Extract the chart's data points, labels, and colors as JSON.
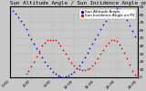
{
  "title": "Sun Altitude Angle / Sun Incidence Angle on PV Panels",
  "legend_blue": "Sun Altitude Angle",
  "legend_red": "Sun Incidence Angle on PV",
  "blue_x": [
    0.0,
    0.5,
    1.0,
    1.5,
    2.0,
    2.5,
    3.0,
    3.5,
    4.0,
    4.5,
    5.0,
    5.5,
    6.0,
    6.5,
    7.0,
    7.5,
    8.0,
    8.5,
    9.0,
    9.5,
    10.0,
    10.5,
    11.0,
    11.5,
    12.0,
    12.5,
    13.0,
    13.5,
    14.0,
    14.5,
    15.0,
    15.5,
    16.0,
    16.5,
    17.0,
    17.5,
    18.0,
    18.5,
    19.0,
    19.5,
    20.0,
    20.5,
    21.0,
    21.5,
    22.0,
    22.5,
    23.0,
    23.5,
    24.0
  ],
  "blue_y": [
    88,
    85,
    81,
    77,
    72,
    67,
    61,
    55,
    49,
    43,
    37,
    31,
    25,
    20,
    15,
    11,
    7,
    4,
    2,
    1,
    0,
    1,
    2,
    4,
    7,
    11,
    15,
    20,
    25,
    31,
    37,
    43,
    49,
    55,
    61,
    67,
    72,
    77,
    81,
    85,
    88,
    87,
    84,
    79,
    73,
    66,
    59,
    52,
    44
  ],
  "red_x": [
    3.0,
    3.5,
    4.0,
    4.5,
    5.0,
    5.5,
    6.0,
    6.5,
    7.0,
    7.5,
    8.0,
    8.5,
    9.0,
    9.5,
    10.0,
    10.5,
    11.0,
    11.5,
    12.0,
    12.5,
    13.0,
    13.5,
    14.0,
    14.5,
    15.0,
    15.5,
    16.0,
    16.5,
    17.0,
    17.5,
    18.0,
    18.5,
    19.0,
    19.5,
    20.0,
    20.5,
    21.0,
    21.5,
    22.0,
    22.5,
    23.0,
    23.5,
    24.0
  ],
  "red_y": [
    5,
    8,
    14,
    20,
    27,
    34,
    40,
    44,
    47,
    48,
    48,
    47,
    44,
    40,
    35,
    30,
    24,
    19,
    15,
    12,
    10,
    9,
    9,
    10,
    12,
    15,
    19,
    24,
    30,
    35,
    40,
    44,
    47,
    48,
    46,
    42,
    37,
    31,
    24,
    16,
    8,
    3,
    1
  ],
  "background_color": "#c8c8c8",
  "plot_bg": "#c8c8c8",
  "blue_color": "#0000dd",
  "red_color": "#dd0000",
  "ylim": [
    0,
    90
  ],
  "xlim": [
    0,
    24
  ],
  "ytick_values": [
    0,
    10,
    20,
    30,
    40,
    50,
    60,
    70,
    80,
    90
  ],
  "xtick_positions": [
    0,
    4,
    8,
    12,
    16,
    20,
    24
  ],
  "xtick_labels": [
    "0:00",
    "4:00",
    "8:00",
    "12:00",
    "16:00",
    "20:00",
    "24:00"
  ],
  "grid_color": "#999999",
  "title_fontsize": 4.2,
  "tick_fontsize": 3.2,
  "legend_fontsize": 3.0,
  "marker_size": 1.5
}
